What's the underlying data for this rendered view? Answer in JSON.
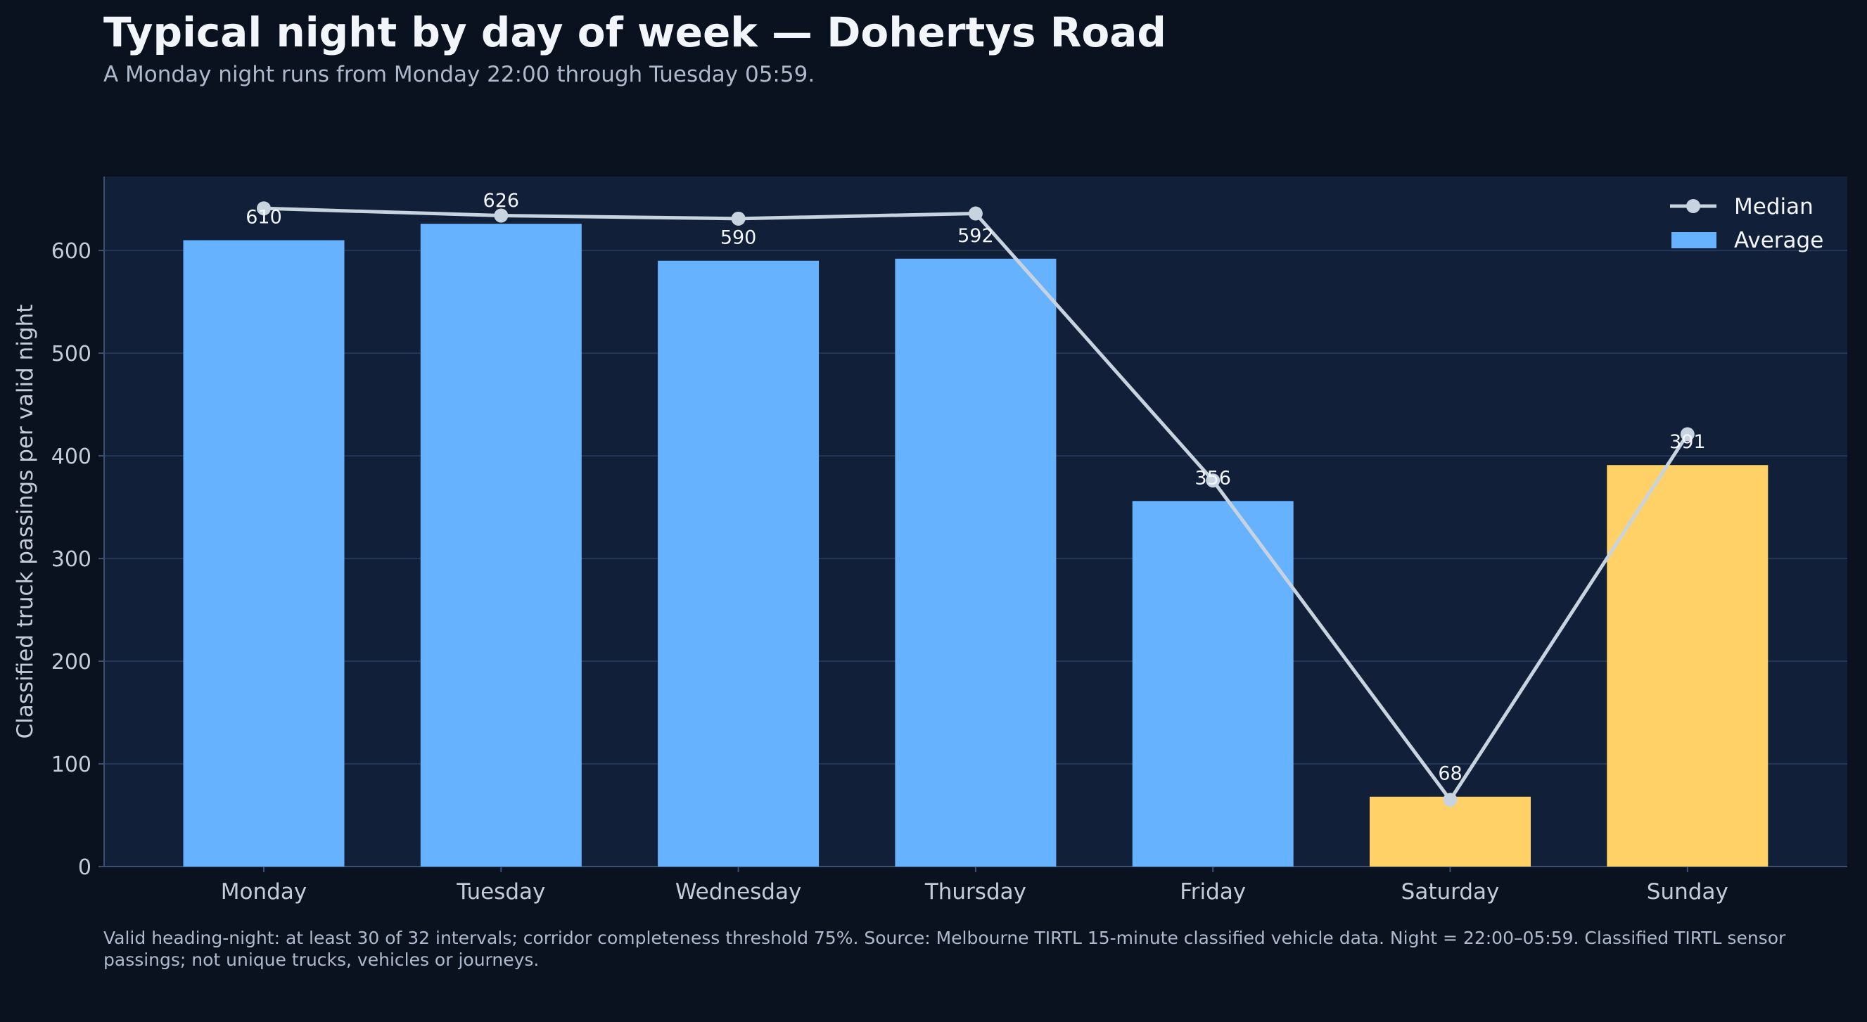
{
  "page": {
    "title": "Typical night by day of week — Dohertys Road",
    "subtitle": "A Monday night runs from Monday 22:00 through Tuesday 05:59.",
    "footnote": "Valid heading-night: at least 30 of 32 intervals; corridor completeness threshold 75%. Source: Melbourne TIRTL 15-minute classified vehicle data. Night = 22:00–05:59. Classified TIRTL sensor passings; not unique trucks, vehicles or journeys."
  },
  "chart_data": {
    "type": "bar",
    "categories": [
      "Monday",
      "Tuesday",
      "Wednesday",
      "Thursday",
      "Friday",
      "Saturday",
      "Sunday"
    ],
    "series": [
      {
        "name": "Average",
        "type": "bar",
        "values": [
          610,
          626,
          590,
          592,
          356,
          68,
          391
        ],
        "data_labels": [
          "610",
          "626",
          "590",
          "592",
          "356",
          "68",
          "391"
        ],
        "colors": [
          "#66b2ff",
          "#66b2ff",
          "#66b2ff",
          "#66b2ff",
          "#66b2ff",
          "#ffd166",
          "#ffd166"
        ]
      },
      {
        "name": "Median",
        "type": "line",
        "values": [
          641,
          634,
          631,
          636,
          376,
          65,
          421
        ],
        "color": "#c8d3e0"
      }
    ],
    "xlabel": "",
    "ylabel": "Classified truck passings per valid night",
    "ylim": [
      0,
      672
    ],
    "yticks": [
      0,
      100,
      200,
      300,
      400,
      500,
      600
    ],
    "grid": "horizontal",
    "legend": "top-right",
    "colors": {
      "weekday": "#66b2ff",
      "weekend": "#ffd166",
      "median_line": "#c8d3e0",
      "plot_background": "#111f38",
      "page_background": "#0a1220"
    }
  }
}
